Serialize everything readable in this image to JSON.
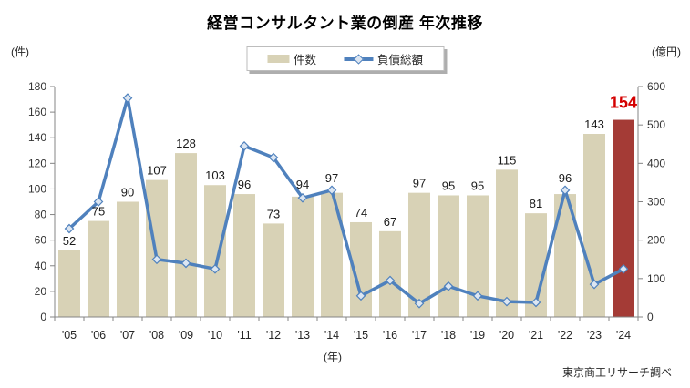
{
  "title": "経営コンサルタント業の倒産 年次推移",
  "source": "東京商工リサーチ調べ",
  "colors": {
    "bar": "#d8d2b6",
    "bar_highlight": "#a43b36",
    "line": "#4f81bd",
    "marker_fill": "#dce6f2",
    "highlight_label": "#d40000",
    "axis": "#848484",
    "text": "#262626"
  },
  "chart_data": {
    "type": "combo_bar_line",
    "title": "経営コンサルタント業の倒産 年次推移",
    "categories": [
      "'05",
      "'06",
      "'07",
      "'08",
      "'09",
      "'10",
      "'11",
      "'12",
      "'13",
      "'14",
      "'15",
      "'16",
      "'17",
      "'18",
      "'19",
      "'20",
      "'21",
      "'22",
      "'23",
      "'24"
    ],
    "series": [
      {
        "name": "件数",
        "type": "bar",
        "axis": "left",
        "unit": "件",
        "values": [
          52,
          75,
          90,
          107,
          128,
          103,
          96,
          73,
          94,
          97,
          74,
          67,
          97,
          95,
          95,
          115,
          81,
          96,
          143,
          154
        ]
      },
      {
        "name": "負債総額",
        "type": "line",
        "axis": "right",
        "unit": "億円",
        "values_estimated_from_plot": true,
        "values": [
          230,
          300,
          570,
          150,
          140,
          125,
          445,
          415,
          310,
          330,
          55,
          95,
          35,
          80,
          55,
          40,
          38,
          330,
          85,
          125
        ]
      }
    ],
    "left_axis": {
      "unit": "(件)",
      "min": 0,
      "max": 180,
      "step": 20,
      "ticks": [
        0,
        20,
        40,
        60,
        80,
        100,
        120,
        140,
        160,
        180
      ]
    },
    "right_axis": {
      "unit": "(億円)",
      "min": 0,
      "max": 600,
      "step": 100,
      "ticks": [
        0,
        100,
        200,
        300,
        400,
        500,
        600
      ]
    },
    "x_axis_unit": "(年)",
    "highlight": {
      "index": 19,
      "value": 154
    },
    "grid": false,
    "legend_position": "top"
  }
}
